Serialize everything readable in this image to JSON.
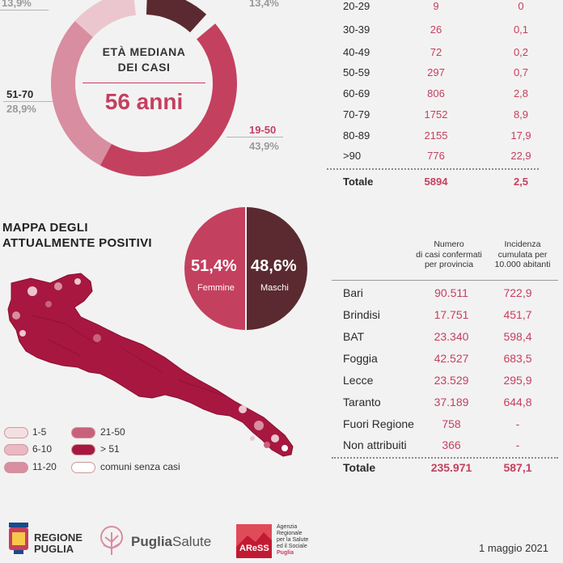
{
  "colors": {
    "accent": "#c4405f",
    "dark": "#5a2a30",
    "crimson": "#b01e47",
    "pink_mid": "#d58a9c",
    "pink_light": "#ecc6ce"
  },
  "donut": {
    "title_line1": "ETÀ MEDIANA",
    "title_line2": "DEI CASI",
    "value": "56 anni",
    "labels": {
      "top_left_pct": "13,9%",
      "top_right_pct": "13,4%",
      "left_range": "51-70",
      "left_pct": "28,9%",
      "right_range": "19-50",
      "right_pct": "43,9%"
    }
  },
  "age_table": {
    "rows": [
      {
        "range": "20-29",
        "cases": "9",
        "incidence": "0"
      },
      {
        "range": "30-39",
        "cases": "26",
        "incidence": "0,1"
      },
      {
        "range": "40-49",
        "cases": "72",
        "incidence": "0,2"
      },
      {
        "range": "50-59",
        "cases": "297",
        "incidence": "0,7"
      },
      {
        "range": "60-69",
        "cases": "806",
        "incidence": "2,8"
      },
      {
        "range": "70-79",
        "cases": "1752",
        "incidence": "8,9"
      },
      {
        "range": "80-89",
        "cases": "2155",
        "incidence": "17,9"
      },
      {
        "range": ">90",
        "cases": "776",
        "incidence": "22,9"
      }
    ],
    "total": {
      "label": "Totale",
      "cases": "5894",
      "incidence": "2,5"
    }
  },
  "map": {
    "title_line1": "MAPPA DEGLI",
    "title_line2": "ATTUALMENTE POSITIVI",
    "legend": [
      {
        "label": "1-5",
        "color": "#f4dfe3"
      },
      {
        "label": "6-10",
        "color": "#eab9c3"
      },
      {
        "label": "11-20",
        "color": "#d88ea0"
      },
      {
        "label": "21-50",
        "color": "#c9617c"
      },
      {
        "label": "> 51",
        "color": "#a8173f"
      },
      {
        "label": "comuni senza casi",
        "color": "#ffffff"
      }
    ]
  },
  "gender": {
    "female_pct": "51,4%",
    "female_label": "Femmine",
    "male_pct": "48,6%",
    "male_label": "Maschi"
  },
  "province_table": {
    "header_cases": [
      "Numero",
      "di casi confermati",
      "per provincia"
    ],
    "header_incidence": [
      "Incidenza",
      "cumulata per",
      "10.000 abitanti"
    ],
    "rows": [
      {
        "name": "Bari",
        "cases": "90.511",
        "incidence": "722,9"
      },
      {
        "name": "Brindisi",
        "cases": "17.751",
        "incidence": "451,7"
      },
      {
        "name": "BAT",
        "cases": "23.340",
        "incidence": "598,4"
      },
      {
        "name": "Foggia",
        "cases": "42.527",
        "incidence": "683,5"
      },
      {
        "name": "Lecce",
        "cases": "23.529",
        "incidence": "295,9"
      },
      {
        "name": "Taranto",
        "cases": "37.189",
        "incidence": "644,8"
      },
      {
        "name": "Fuori Regione",
        "cases": "758",
        "incidence": "-"
      },
      {
        "name": "Non attribuiti",
        "cases": "366",
        "incidence": "-"
      }
    ],
    "total": {
      "label": "Totale",
      "cases": "235.971",
      "incidence": "587,1"
    }
  },
  "footer": {
    "regione_line1": "REGIONE",
    "regione_line2": "PUGLIA",
    "puglia_bold": "Puglia",
    "puglia_light": "Salute",
    "aress": "AReSS",
    "aress_line1": "Agenzia",
    "aress_line2": "Regionale",
    "aress_line3": "per la Salute",
    "aress_line4": "ed il Sociale",
    "aress_line5": "Puglia",
    "date": "1 maggio 2021"
  }
}
